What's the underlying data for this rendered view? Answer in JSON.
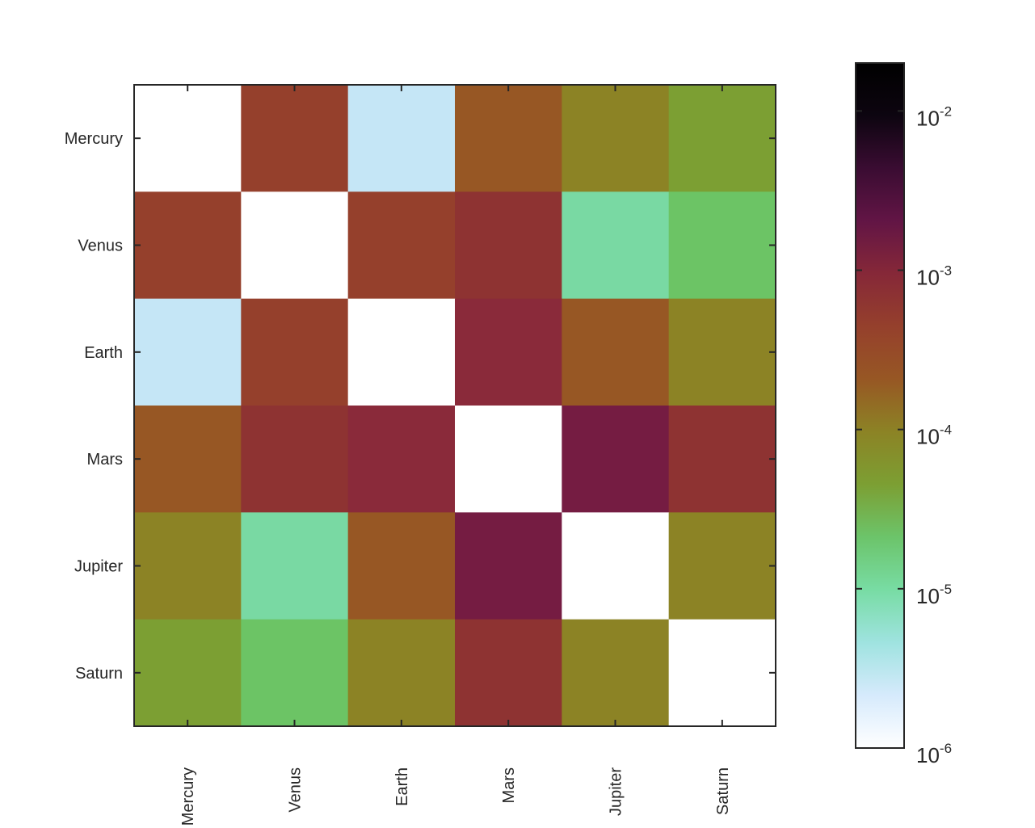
{
  "chart_data": {
    "type": "heatmap",
    "title": "",
    "xlabel": "",
    "ylabel": "",
    "x_categories": [
      "Mercury",
      "Venus",
      "Earth",
      "Mars",
      "Jupiter",
      "Saturn"
    ],
    "y_categories": [
      "Mercury",
      "Venus",
      "Earth",
      "Mars",
      "Jupiter",
      "Saturn"
    ],
    "values": [
      [
        0,
        0.0008,
        7e-06,
        0.0004,
        0.00015,
        9e-05
      ],
      [
        0.0008,
        0,
        0.0008,
        0.0012,
        2e-05,
        5e-05
      ],
      [
        7e-06,
        0.0008,
        0,
        0.0015,
        0.0004,
        0.00015
      ],
      [
        0.0004,
        0.0012,
        0.0015,
        0,
        0.003,
        0.0012
      ],
      [
        0.00015,
        2e-05,
        0.0004,
        0.003,
        0,
        0.00015
      ],
      [
        9e-05,
        5e-05,
        0.00015,
        0.0012,
        0.00015,
        0
      ]
    ],
    "cell_colors": [
      [
        "#ffffff",
        "#95402c",
        "#c5e6f6",
        "#975724",
        "#8c8325",
        "#7c9f33"
      ],
      [
        "#95402c",
        "#ffffff",
        "#95402c",
        "#8e3332",
        "#79d9a3",
        "#6cc465"
      ],
      [
        "#c5e6f6",
        "#95402c",
        "#ffffff",
        "#8a2a3a",
        "#975724",
        "#8c8325"
      ],
      [
        "#975724",
        "#8e3332",
        "#8a2a3a",
        "#ffffff",
        "#751c42",
        "#8e3332"
      ],
      [
        "#8c8325",
        "#79d9a3",
        "#975724",
        "#751c42",
        "#ffffff",
        "#8c8325"
      ],
      [
        "#7c9f33",
        "#6cc465",
        "#8c8325",
        "#8e3332",
        "#8c8325",
        "#ffffff"
      ]
    ],
    "colorbar": {
      "scale": "log",
      "range": [
        1e-06,
        0.02
      ],
      "ticks": [
        {
          "base": "10",
          "exp": "-6",
          "value": 1e-06
        },
        {
          "base": "10",
          "exp": "-5",
          "value": 1e-05
        },
        {
          "base": "10",
          "exp": "-4",
          "value": 0.0001
        },
        {
          "base": "10",
          "exp": "-3",
          "value": 0.001
        },
        {
          "base": "10",
          "exp": "-2",
          "value": 0.01
        }
      ],
      "colormap": [
        "#ffffff",
        "#d6eafc",
        "#9fe3e0",
        "#78dca4",
        "#6cc46a",
        "#7c9f33",
        "#8c8325",
        "#975724",
        "#95402c",
        "#862838",
        "#621545",
        "#3a0c32",
        "#0d0510",
        "#000000"
      ]
    },
    "grid": false,
    "legend": "colorbar-right"
  }
}
